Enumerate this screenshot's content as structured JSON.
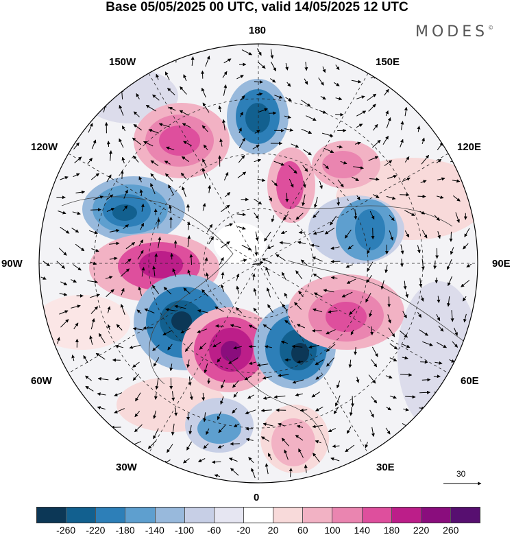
{
  "title": "Base 05/05/2025 00 UTC, valid 14/05/2025 12 UTC",
  "brand": {
    "name": "MODES",
    "mark": "©"
  },
  "longitude_labels": {
    "top": "180",
    "bottom": "0",
    "left": "90W",
    "right": "90E",
    "upper_left": "150W",
    "upper_right": "150E",
    "mid_left": "120W",
    "mid_right": "120E",
    "lower_left": "60W",
    "lower_right": "60E",
    "bottom_left": "30W",
    "bottom_right": "30E"
  },
  "vector_scale": {
    "value": "30"
  },
  "colorbar": {
    "colors": [
      "#0c3756",
      "#12608f",
      "#2d7fb8",
      "#5e9fcf",
      "#98b9dc",
      "#c7cfe6",
      "#e6e6f2",
      "#ffffff",
      "#f8dada",
      "#f2b2c4",
      "#ea85b0",
      "#de4f9d",
      "#bc1e89",
      "#8a0d7d",
      "#570f70"
    ],
    "tick_labels": [
      "-260",
      "-220",
      "-180",
      "-140",
      "-100",
      "-60",
      "-20",
      "20",
      "60",
      "100",
      "140",
      "180",
      "220",
      "260"
    ]
  },
  "map_colors": {
    "neg_strong": "#12608f",
    "neg_mid": "#5e9fcf",
    "neg_weak": "#c7cfe6",
    "pos_weak": "#f8dada",
    "pos_mid": "#ea85b0",
    "pos_strong": "#bc1e89",
    "pos_max": "#8a0d7d"
  }
}
